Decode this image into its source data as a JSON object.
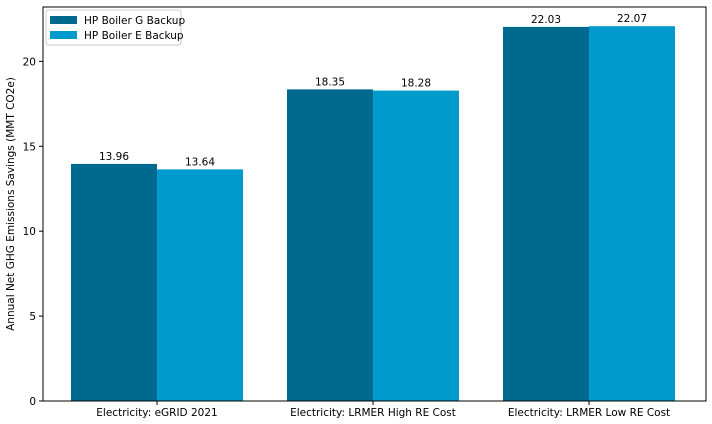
{
  "chart_data": {
    "type": "bar",
    "title": "",
    "xlabel": "",
    "ylabel": "Annual Net GHG Emissions Savings (MMT CO2e)",
    "categories": [
      "Electricity: eGRID 2021",
      "Electricity: LRMER High RE Cost",
      "Electricity: LRMER Low RE Cost"
    ],
    "series": [
      {
        "name": "HP Boiler G Backup",
        "values": [
          13.96,
          18.35,
          22.03
        ],
        "color": "#006a8e"
      },
      {
        "name": "HP Boiler E Backup",
        "values": [
          13.64,
          18.28,
          22.07
        ],
        "color": "#009acd"
      }
    ],
    "value_labels": [
      [
        "13.96",
        "18.35",
        "22.03"
      ],
      [
        "13.64",
        "18.28",
        "22.07"
      ]
    ],
    "ylim": [
      0,
      23.2
    ],
    "yticks": [
      0,
      5,
      10,
      15,
      20
    ],
    "ytick_labels": [
      "0",
      "5",
      "10",
      "15",
      "20"
    ],
    "grid": false,
    "legend_position": "top-left"
  }
}
